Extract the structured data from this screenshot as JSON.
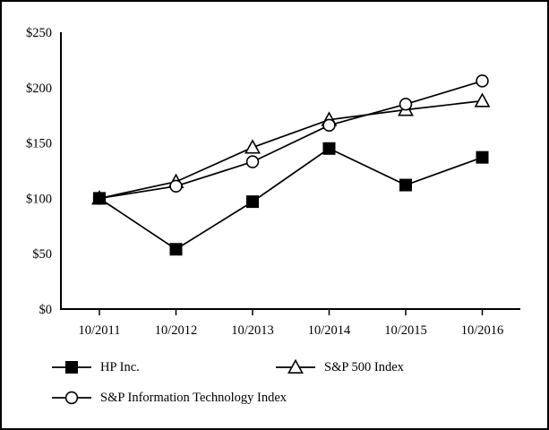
{
  "figure": {
    "background_color": "#ffffff",
    "frame_border_color": "#000000",
    "ink_color": "#000000"
  },
  "chart_data": {
    "type": "line",
    "title": "",
    "xlabel": "",
    "ylabel": "",
    "categories": [
      "10/2011",
      "10/2012",
      "10/2013",
      "10/2014",
      "10/2015",
      "10/2016"
    ],
    "series": [
      {
        "name": "HP Inc.",
        "marker": "square",
        "marker_fill": "filled",
        "color": "#000000",
        "values": [
          100,
          54,
          97,
          145,
          112,
          137
        ]
      },
      {
        "name": "S&P 500 Index",
        "marker": "triangle",
        "marker_fill": "open",
        "color": "#000000",
        "values": [
          100,
          115,
          146,
          171,
          180,
          188
        ]
      },
      {
        "name": "S&P Information Technology Index",
        "marker": "circle",
        "marker_fill": "open",
        "color": "#000000",
        "values": [
          100,
          111,
          133,
          166,
          185,
          206
        ]
      }
    ],
    "ylim": [
      0,
      250
    ],
    "yticks": [
      0,
      50,
      100,
      150,
      200,
      250
    ],
    "ytick_labels": [
      "$0",
      "$50",
      "$100",
      "$150",
      "$200",
      "$250"
    ],
    "grid": false,
    "legend_position": "bottom",
    "legend_rows": [
      [
        "HP Inc.",
        "S&P 500 Index"
      ],
      [
        "S&P Information Technology Index"
      ]
    ]
  }
}
